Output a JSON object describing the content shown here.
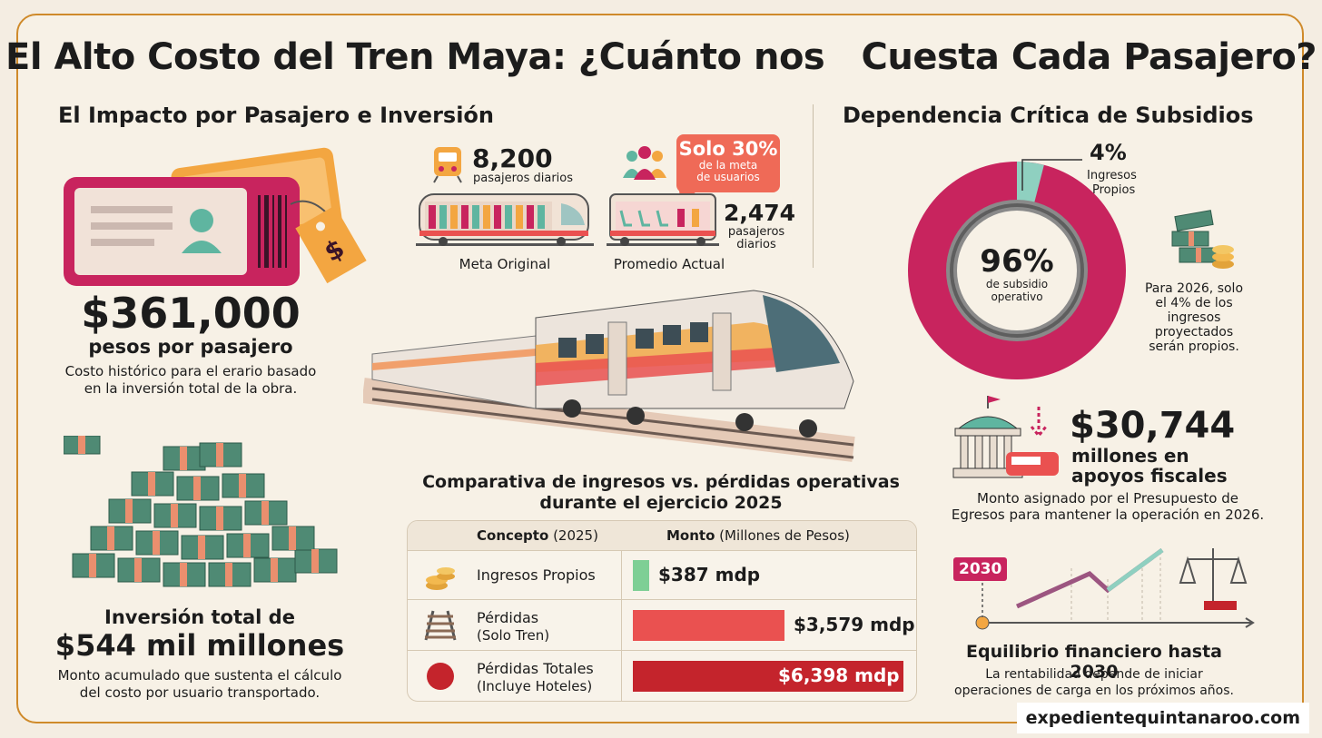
{
  "title": "El Alto Costo del Tren Maya: ¿Cuánto nos   Cuesta Cada Pasajero?",
  "left": {
    "heading": "El Impacto por Pasajero e Inversión",
    "cost_value": "$361,000",
    "cost_unit": "pesos por pasajero",
    "cost_desc_1": "Costo histórico para el erario basado",
    "cost_desc_2": "en la inversión total de la obra.",
    "inv_line1": "Inversión total de",
    "inv_value": "$544 mil millones",
    "inv_desc_1": "Monto acumulado que sustenta el cálculo",
    "inv_desc_2": "del costo por usuario transportado."
  },
  "center": {
    "goal_number": "8,200",
    "goal_label": "pasajeros diarios",
    "goal_caption": "Meta Original",
    "bubble_line1": "Solo 30%",
    "bubble_line2": "de la meta",
    "bubble_line3": "de usuarios",
    "actual_number": "2,474",
    "actual_label_1": "pasajeros",
    "actual_label_2": "diarios",
    "actual_caption": "Promedio Actual",
    "table_title_1": "Comparativa de ingresos vs. pérdidas operativas",
    "table_title_2": "durante el ejercicio 2025",
    "table": {
      "col1_bold": "Concepto",
      "col1_light": "(2025)",
      "col2_bold": "Monto",
      "col2_light": "(Millones de Pesos)",
      "rows": [
        {
          "label": "Ingresos Propios",
          "sub": "",
          "value": "$387 mdp",
          "amount": 387,
          "color": "#7ecf95"
        },
        {
          "label": "Pérdidas",
          "sub": "(Solo Tren)",
          "value": "$3,579 mdp",
          "amount": 3579,
          "color": "#ea5150"
        },
        {
          "label": "Pérdidas Totales",
          "sub": "(Incluye Hoteles)",
          "value": "$6,398 mdp",
          "amount": 6398,
          "color": "#c4242c"
        }
      ]
    }
  },
  "right": {
    "heading": "Dependencia Crítica de Subsidios",
    "donut_pct": "96%",
    "donut_sub_1": "de subsidio",
    "donut_sub_2": "operativo",
    "own_pct": "4%",
    "own_label_1": "Ingresos",
    "own_label_2": "Propios",
    "own_share": 4,
    "note_1": "Para 2026, solo",
    "note_2": "el 4% de los",
    "note_3": "ingresos",
    "note_4": "proyectados",
    "note_5": "serán propios.",
    "fiscal_value": "$30,744",
    "fiscal_unit_1": "millones en",
    "fiscal_unit_2": "apoyos fiscales",
    "fiscal_desc_1": "Monto asignado por el Presupuesto de",
    "fiscal_desc_2": "Egresos para mantener la operación en 2026.",
    "year_tag": "2030",
    "eq_title": "Equilibrio financiero hasta 2030",
    "eq_desc_1": "La rentabilidad depende de iniciar",
    "eq_desc_2": "operaciones de carga en los próximos años."
  },
  "footer": "expedientequintanaroo.com",
  "colors": {
    "magenta": "#c8245e",
    "orange": "#f2a24a",
    "teal": "#5fb5a0",
    "red": "#c4242c"
  }
}
